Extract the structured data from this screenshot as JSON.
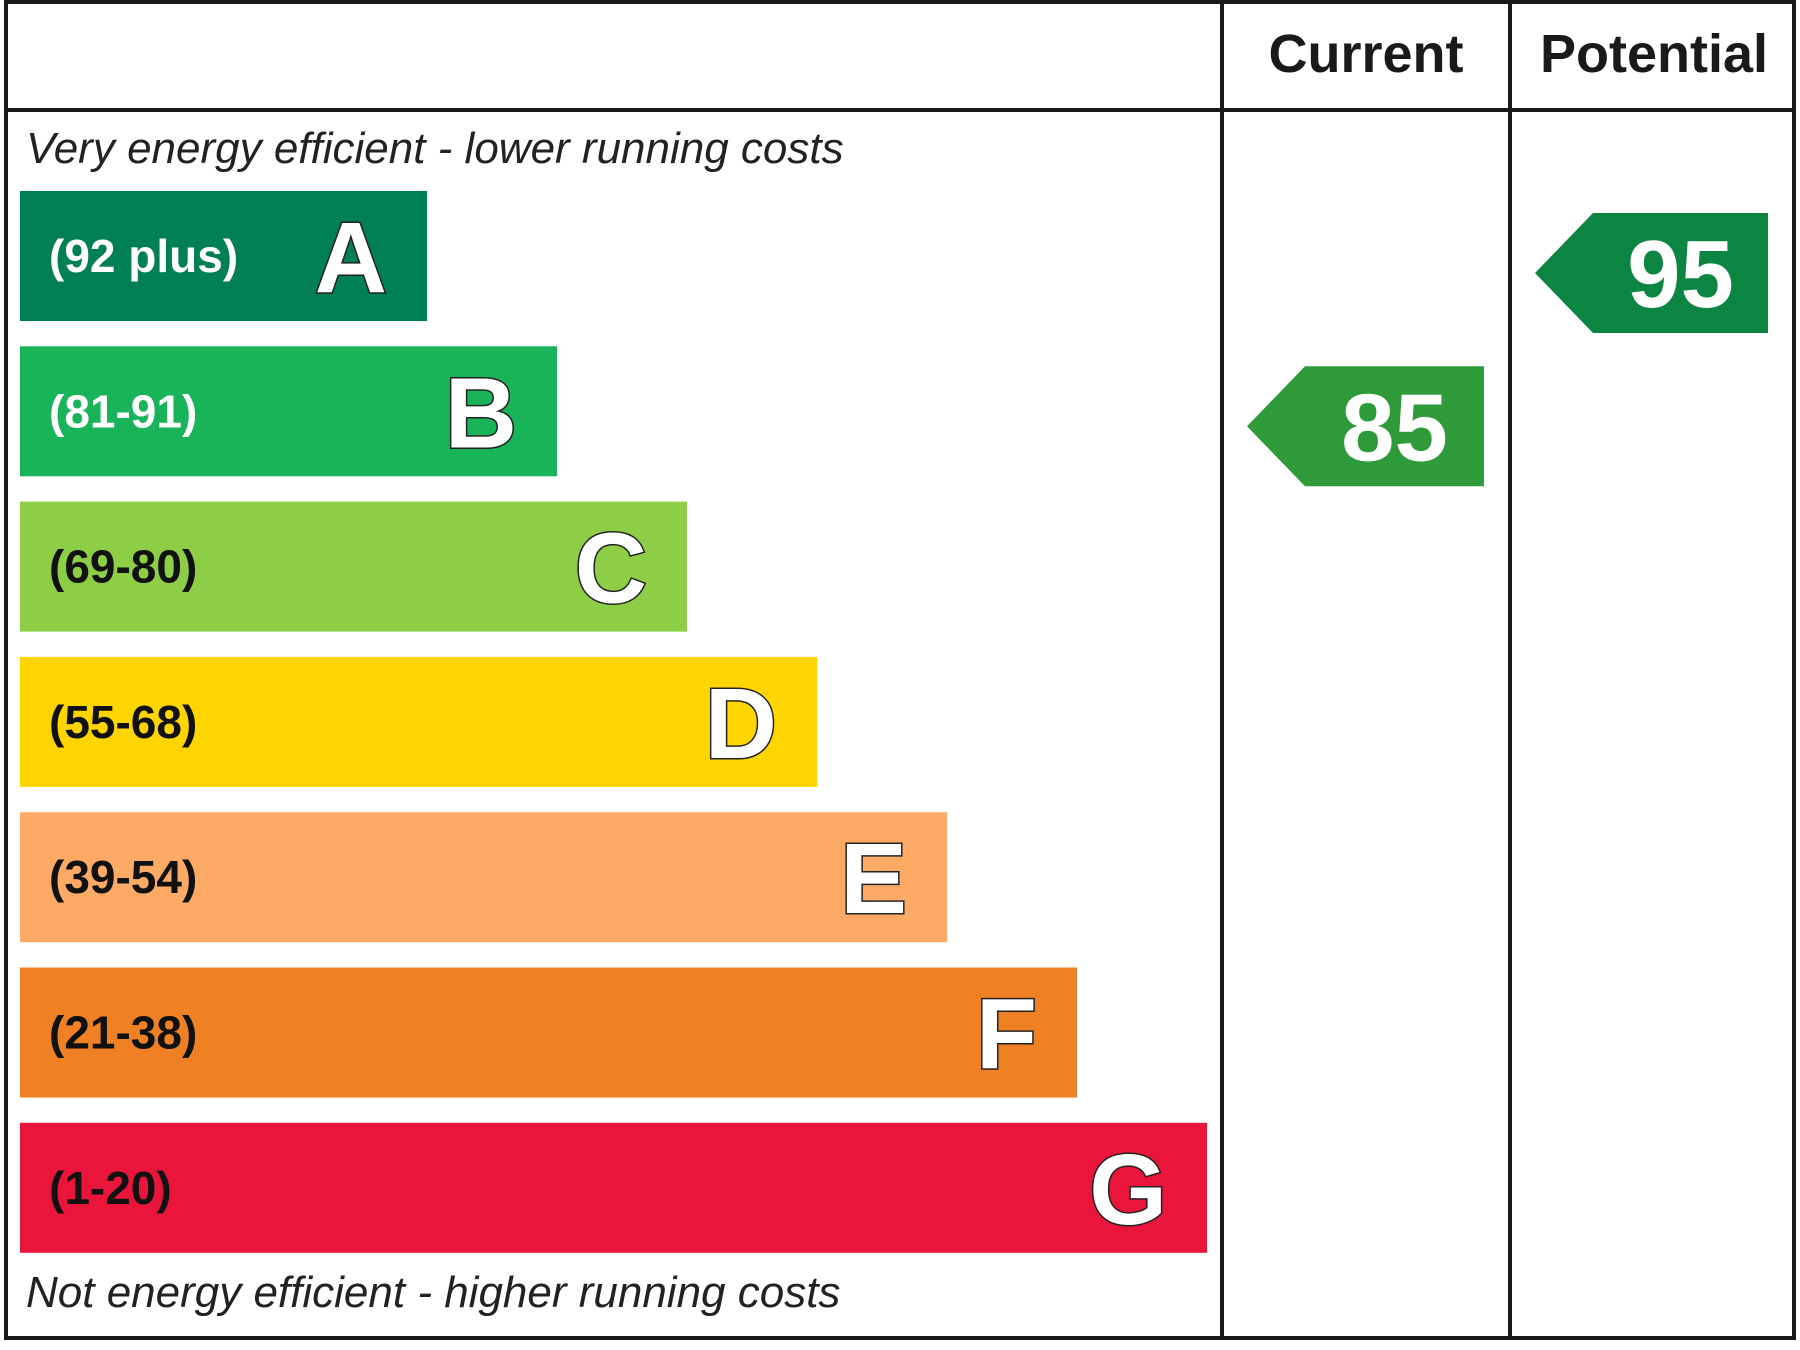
{
  "chart_data": {
    "type": "bar",
    "top_caption": "Very energy efficient - lower running costs",
    "bottom_caption": "Not energy efficient - higher running costs",
    "columns": [
      "Current",
      "Potential"
    ],
    "bands": [
      {
        "letter": "A",
        "range": "(92 plus)",
        "color": "#008054",
        "text_color": "#ffffff"
      },
      {
        "letter": "B",
        "range": "(81-91)",
        "color": "#19b459",
        "text_color": "#ffffff"
      },
      {
        "letter": "C",
        "range": "(69-80)",
        "color": "#8dce46",
        "text_color": "#111111"
      },
      {
        "letter": "D",
        "range": "(55-68)",
        "color": "#ffd500",
        "text_color": "#111111"
      },
      {
        "letter": "E",
        "range": "(39-54)",
        "color": "#fcaa65",
        "text_color": "#111111"
      },
      {
        "letter": "F",
        "range": "(21-38)",
        "color": "#ef8023",
        "text_color": "#111111"
      },
      {
        "letter": "G",
        "range": "(1-20)",
        "color": "#e9153b",
        "text_color": "#111111"
      }
    ],
    "ratings": [
      {
        "column": "Current",
        "value": 85,
        "band": "B",
        "color": "#2e9a3a"
      },
      {
        "column": "Potential",
        "value": 95,
        "band": "A",
        "color": "#0c8442"
      }
    ]
  }
}
